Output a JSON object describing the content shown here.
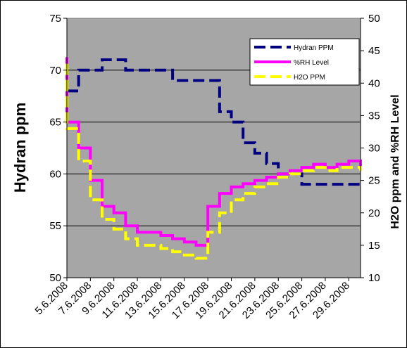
{
  "chart_data": {
    "type": "line",
    "ylabel": "Hydran ppm",
    "y2label": "H2O ppm and %RH Level",
    "ylim": [
      50,
      75
    ],
    "yticks": [
      "50",
      "55",
      "60",
      "65",
      "70",
      "75"
    ],
    "y2lim": [
      10,
      50
    ],
    "y2ticks": [
      "10",
      "15",
      "20",
      "25",
      "30",
      "35",
      "40",
      "45",
      "50"
    ],
    "x_start": "5.6.2008",
    "x_end": "30.6.2008",
    "xticks": [
      "5.6.2008",
      "7.6.2008",
      "9.6.2008",
      "11.6.2008",
      "13.6.2008",
      "15.6.2008",
      "17.6.2008",
      "19.6.2008",
      "21.6.2008",
      "23.6.2008",
      "25.6.2008",
      "27.6.2008",
      "29.6.2008"
    ],
    "grid": true,
    "plot_background": "#a6a6a6",
    "legend_position": "top-right",
    "series": [
      {
        "name": "Hydran PPM",
        "axis": "left",
        "color": "#000080",
        "style": "dashed",
        "x": [
          "5.6.2008",
          "6.6.2008",
          "7.6.2008",
          "8.6.2008",
          "9.6.2008",
          "10.6.2008",
          "11.6.2008",
          "12.6.2008",
          "13.6.2008",
          "14.6.2008",
          "15.6.2008",
          "16.6.2008",
          "17.6.2008",
          "18.6.2008",
          "19.6.2008",
          "20.6.2008",
          "21.6.2008",
          "22.6.2008",
          "23.6.2008",
          "24.6.2008",
          "25.6.2008",
          "26.6.2008",
          "27.6.2008",
          "28.6.2008",
          "29.6.2008",
          "30.6.2008"
        ],
        "values": [
          68,
          70,
          70,
          71,
          71,
          70,
          70,
          70,
          70,
          69,
          69,
          69,
          69,
          66,
          65,
          63,
          62,
          61,
          60,
          60,
          59,
          59,
          59,
          59,
          59,
          59
        ]
      },
      {
        "name": "%RH Level",
        "axis": "right",
        "color": "#ff00ff",
        "style": "solid",
        "x": [
          "5.6.2008",
          "5.6.2008",
          "6.6.2008",
          "7.6.2008",
          "8.6.2008",
          "9.6.2008",
          "10.6.2008",
          "11.6.2008",
          "12.6.2008",
          "13.6.2008",
          "14.6.2008",
          "15.6.2008",
          "16.6.2008",
          "17.6.2008",
          "17.6.2008",
          "18.6.2008",
          "19.6.2008",
          "20.6.2008",
          "21.6.2008",
          "22.6.2008",
          "23.6.2008",
          "24.6.2008",
          "25.6.2008",
          "26.6.2008",
          "27.6.2008",
          "28.6.2008",
          "29.6.2008",
          "30.6.2008"
        ],
        "values": [
          44,
          34,
          30,
          25,
          21,
          20,
          18,
          17,
          17,
          16.5,
          16,
          15.5,
          15,
          15.5,
          21,
          23,
          24,
          24.5,
          25,
          25.5,
          26,
          26.5,
          27,
          27.5,
          27,
          27.5,
          28,
          27
        ]
      },
      {
        "name": "H2O PPM",
        "axis": "right",
        "color": "#ffff00",
        "style": "dashed",
        "x": [
          "5.6.2008",
          "5.6.2008",
          "6.6.2008",
          "7.6.2008",
          "8.6.2008",
          "9.6.2008",
          "10.6.2008",
          "11.6.2008",
          "12.6.2008",
          "13.6.2008",
          "14.6.2008",
          "15.6.2008",
          "16.6.2008",
          "17.6.2008",
          "17.6.2008",
          "18.6.2008",
          "19.6.2008",
          "20.6.2008",
          "21.6.2008",
          "22.6.2008",
          "23.6.2008",
          "24.6.2008",
          "25.6.2008",
          "26.6.2008",
          "27.6.2008",
          "28.6.2008",
          "29.6.2008",
          "30.6.2008"
        ],
        "values": [
          43,
          33,
          28,
          22,
          19,
          17.5,
          16,
          15,
          15,
          14.5,
          14,
          13.5,
          13,
          13,
          17,
          20,
          22,
          23,
          24,
          24.5,
          25.5,
          26,
          26.5,
          27,
          26.5,
          27,
          27,
          26.5
        ]
      }
    ]
  }
}
